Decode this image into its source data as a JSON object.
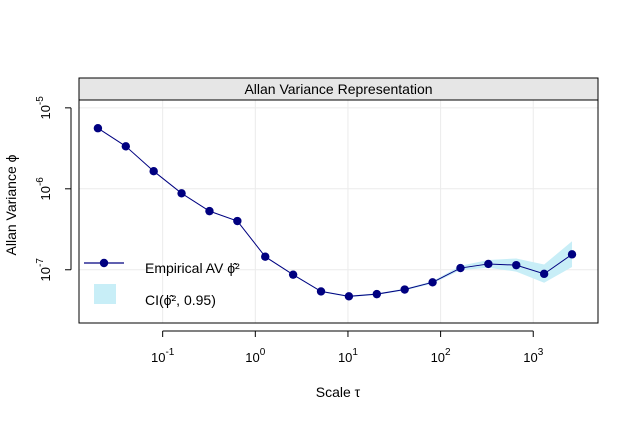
{
  "chart_data": {
    "type": "line",
    "title": "Allan Variance Representation",
    "xlabel": "Scale τ",
    "ylabel": "Allan Variance ϕ",
    "xscale": "log10",
    "yscale": "log10",
    "xlim": [
      0.0125,
      5000
    ],
    "ylim": [
      2.2e-08,
      1.25e-05
    ],
    "x_ticks": [
      {
        "base": "10",
        "exp": "-1",
        "value": 0.1
      },
      {
        "base": "10",
        "exp": "0",
        "value": 1
      },
      {
        "base": "10",
        "exp": "1",
        "value": 10
      },
      {
        "base": "10",
        "exp": "2",
        "value": 100
      },
      {
        "base": "10",
        "exp": "3",
        "value": 1000
      }
    ],
    "y_ticks": [
      {
        "base": "10",
        "exp": "-7",
        "value": 1e-07
      },
      {
        "base": "10",
        "exp": "-6",
        "value": 1e-06
      },
      {
        "base": "10",
        "exp": "-5",
        "value": 1e-05
      }
    ],
    "grid": true,
    "legend_position": "bottom-left",
    "series": [
      {
        "name": "Empirical AV ϕ̂²",
        "color": "#000080",
        "x": [
          0.02,
          0.04,
          0.08,
          0.16,
          0.32,
          0.64,
          1.28,
          2.56,
          5.12,
          10.24,
          20.48,
          40.96,
          81.92,
          163.84,
          327.68,
          655.36,
          1310.72,
          2621.44
        ],
        "y": [
          5.6e-06,
          3.35e-06,
          1.65e-06,
          8.8e-07,
          5.3e-07,
          4e-07,
          1.45e-07,
          8.7e-08,
          5.4e-08,
          4.7e-08,
          5e-08,
          5.7e-08,
          7e-08,
          1.05e-07,
          1.18e-07,
          1.14e-07,
          8.9e-08,
          1.55e-07
        ]
      }
    ],
    "confidence_band": {
      "name": "CI(ϕ̂², 0.95)",
      "color": "#c8eef7",
      "x": [
        0.02,
        0.04,
        0.08,
        0.16,
        0.32,
        0.64,
        1.28,
        2.56,
        5.12,
        10.24,
        20.48,
        40.96,
        81.92,
        163.84,
        327.68,
        655.36,
        1310.72,
        2621.44
      ],
      "lower": [
        5.55e-06,
        3.32e-06,
        1.63e-06,
        8.7e-07,
        5.25e-07,
        3.95e-07,
        1.43e-07,
        8.55e-08,
        5.3e-08,
        4.6e-08,
        4.88e-08,
        5.55e-08,
        6.75e-08,
        9.9e-08,
        1.06e-07,
        9.5e-08,
        6.9e-08,
        1.08e-07
      ],
      "upper": [
        5.65e-06,
        3.38e-06,
        1.67e-06,
        8.9e-07,
        5.35e-07,
        4.05e-07,
        1.47e-07,
        8.85e-08,
        5.5e-08,
        4.8e-08,
        5.12e-08,
        5.85e-08,
        7.25e-08,
        1.12e-07,
        1.32e-07,
        1.38e-07,
        1.16e-07,
        2.25e-07
      ]
    }
  }
}
